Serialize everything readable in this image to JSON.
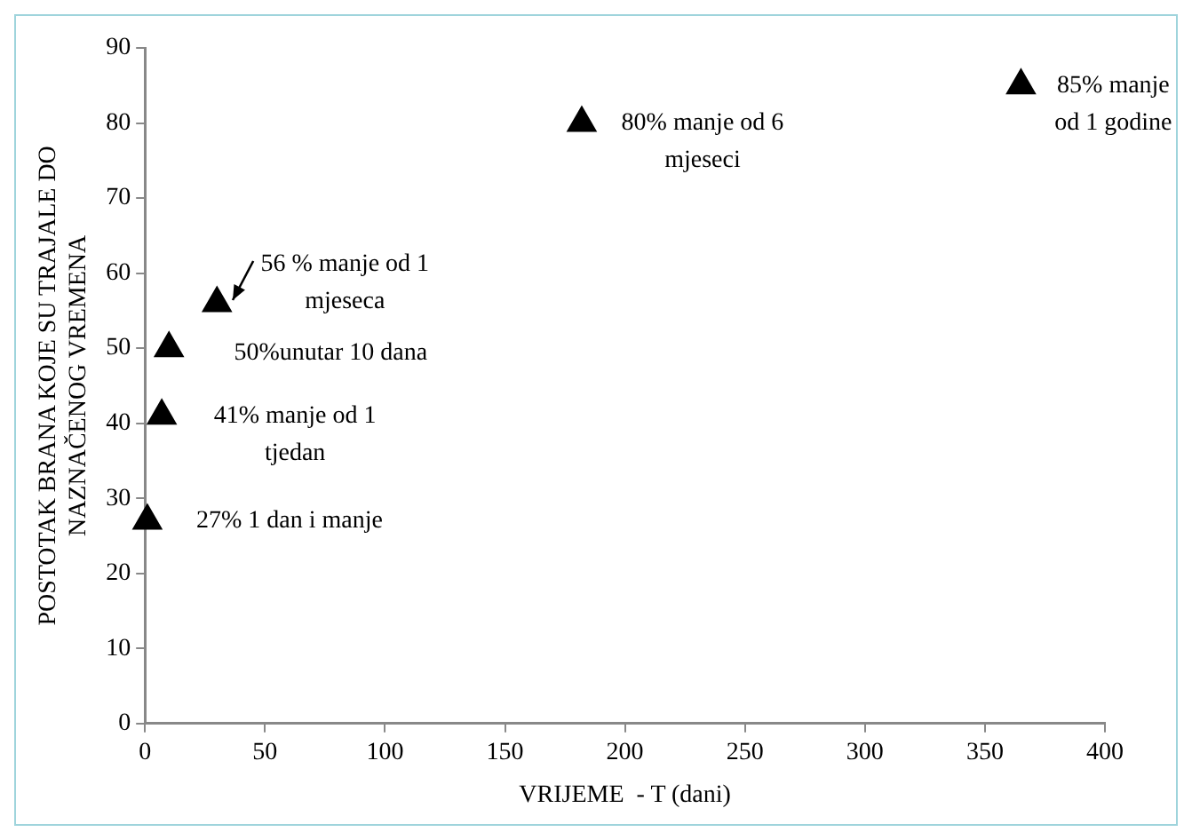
{
  "chart_data": {
    "type": "scatter",
    "xlabel": "VRIJEME  - T (dani)",
    "ylabel": "POSTOTAK BRANA KOJE SU TRAJALE DO\nNAZNAČENOG VREMENA",
    "x": [
      1,
      7,
      10,
      30,
      182,
      365
    ],
    "series": [
      {
        "color": "#000000",
        "values": [
          27,
          41,
          50,
          56,
          80,
          85
        ]
      }
    ],
    "xlim": [
      0,
      400
    ],
    "xticks": [
      0,
      50,
      100,
      150,
      200,
      250,
      300,
      350,
      400
    ],
    "ylim": [
      0,
      90
    ],
    "yticks": [
      0,
      10,
      20,
      30,
      40,
      50,
      60,
      70,
      80,
      90
    ],
    "marker": "triangle",
    "grid": false,
    "legend": false,
    "annotations": [
      {
        "text": "27% 1 dan i manje",
        "x": 1,
        "y": 27
      },
      {
        "text": "41% manje od 1\ntjedan",
        "x": 7,
        "y": 41
      },
      {
        "text": "50%unutar 10 dana",
        "x": 10,
        "y": 50
      },
      {
        "text": "56 % manje od 1\nmjeseca",
        "x": 30,
        "y": 56
      },
      {
        "text": "80% manje od 6\nmjeseci",
        "x": 182,
        "y": 80
      },
      {
        "text": "85% manje\nod 1 godine",
        "x": 365,
        "y": 85
      }
    ]
  }
}
